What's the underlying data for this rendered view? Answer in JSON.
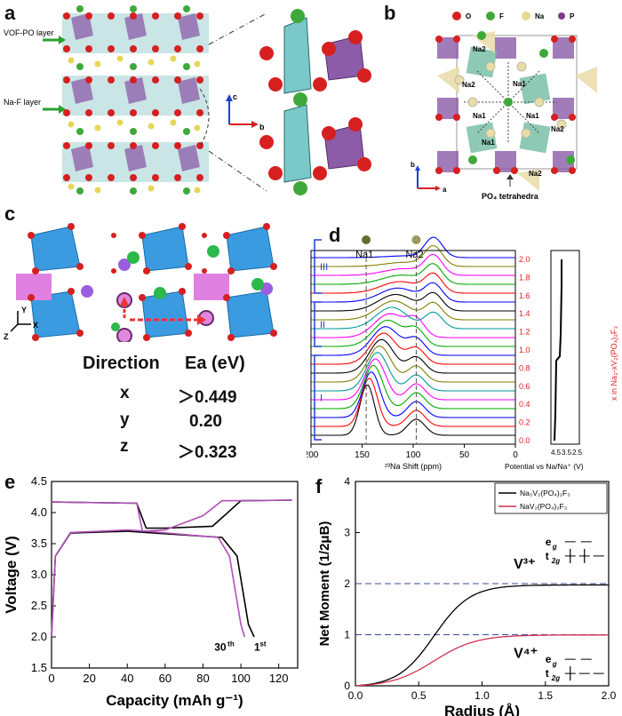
{
  "panel_labels": {
    "a": "a",
    "b": "b",
    "c": "c",
    "d": "d",
    "e": "e",
    "f": "f"
  },
  "panel_a": {
    "vofpo_layer": "VOF-PO layer",
    "naf_layer": "Na-F layer",
    "axis_c": "c",
    "axis_b": "b"
  },
  "panel_b": {
    "legend": [
      {
        "symbol": "O",
        "color": "#d62020"
      },
      {
        "symbol": "F",
        "color": "#3fa83a"
      },
      {
        "symbol": "Na",
        "color": "#e8d890"
      },
      {
        "symbol": "P",
        "color": "#7b3a8e"
      }
    ],
    "sites": [
      "Na2",
      "Na1",
      "Na2",
      "Na1",
      "Na1",
      "Na2",
      "Na1",
      "Na2"
    ],
    "caption": "PO₄ tetrahedra",
    "axis_a": "a",
    "axis_b": "b"
  },
  "panel_c": {
    "axes": {
      "y": "Y",
      "x": "X",
      "z": "Z"
    },
    "table": {
      "header": [
        "Direction",
        "Ea (eV)"
      ],
      "rows": [
        [
          "x",
          "＞0.449"
        ],
        [
          "y",
          "0.20"
        ],
        [
          "z",
          "＞0.323"
        ]
      ]
    }
  },
  "chart_data": [
    {
      "panel": "d",
      "type": "line",
      "xlabel": "²³Na Shift (ppm)",
      "xticks": [
        200,
        150,
        100,
        50,
        0
      ],
      "xlim": [
        200,
        0
      ],
      "peak_markers": [
        "Na1",
        "Na2"
      ],
      "regions": [
        "I",
        "II",
        "III"
      ],
      "right_axis_label": "x in Na₃-xV₂(PO₄)₂F₃",
      "right_axis_ticks": [
        "0.0",
        "0.2",
        "0.4",
        "0.6",
        "0.8",
        "1.0",
        "1.2",
        "1.4",
        "1.6",
        "1.8",
        "2.0"
      ],
      "potential_label": "Potential vs Na/Na⁺ (V)",
      "potential_ticks": [
        "4.5",
        "3.5",
        "2.5"
      ],
      "series_colors": [
        "#000000",
        "#ff0000",
        "#0000ff",
        "#00aa00",
        "#ff00ff",
        "#009999",
        "#808000",
        "#000000",
        "#ff0000",
        "#0000ff",
        "#00aa00",
        "#ff00ff",
        "#009999",
        "#808000",
        "#000000",
        "#0000ff",
        "#ff0000",
        "#00aa00",
        "#ff00ff",
        "#808000",
        "#0000ff"
      ]
    },
    {
      "panel": "e",
      "type": "line",
      "xlabel": "Capacity (mAh g⁻¹)",
      "ylabel": "Voltage (V)",
      "xlim": [
        0,
        130
      ],
      "ylim": [
        1.5,
        4.5
      ],
      "xticks": [
        "0",
        "20",
        "40",
        "60",
        "80",
        "100",
        "120"
      ],
      "yticks": [
        "1.5",
        "2.0",
        "2.5",
        "3.0",
        "3.5",
        "4.0",
        "4.5"
      ],
      "series": [
        {
          "name": "1st",
          "color": "#000000",
          "charge": [
            [
              0,
              4.17
            ],
            [
              45,
              4.15
            ],
            [
              50,
              3.75
            ],
            [
              60,
              3.75
            ],
            [
              85,
              3.78
            ],
            [
              100,
              4.19
            ],
            [
              127,
              4.2
            ]
          ],
          "discharge": [
            [
              0,
              2.0
            ],
            [
              2,
              3.3
            ],
            [
              10,
              3.67
            ],
            [
              40,
              3.7
            ],
            [
              50,
              3.68
            ],
            [
              90,
              3.6
            ],
            [
              98,
              3.3
            ],
            [
              104,
              2.2
            ],
            [
              107,
              2.0
            ]
          ]
        },
        {
          "name": "30th",
          "color": "#b050b8",
          "charge": [
            [
              0,
              4.17
            ],
            [
              45,
              4.15
            ],
            [
              48,
              3.7
            ],
            [
              60,
              3.72
            ],
            [
              80,
              3.95
            ],
            [
              90,
              4.19
            ],
            [
              127,
              4.2
            ]
          ],
          "discharge": [
            [
              0,
              2.0
            ],
            [
              2,
              3.3
            ],
            [
              10,
              3.68
            ],
            [
              40,
              3.72
            ],
            [
              50,
              3.7
            ],
            [
              88,
              3.6
            ],
            [
              94,
              3.3
            ],
            [
              100,
              2.2
            ],
            [
              102,
              2.0
            ]
          ]
        }
      ],
      "annotations": [
        "30",
        "th",
        "1",
        "st"
      ]
    },
    {
      "panel": "f",
      "type": "line",
      "xlabel": "Radius (Å)",
      "ylabel": "Net Moment (1/2μB)",
      "xlim": [
        0,
        2.0
      ],
      "ylim": [
        0,
        4
      ],
      "xticks": [
        "0.0",
        "0.5",
        "1.0",
        "1.5",
        "2.0"
      ],
      "yticks": [
        "0",
        "1",
        "2",
        "3",
        "4"
      ],
      "legend": [
        {
          "text": "Na₃V₂(PO₄)₂F₃",
          "color": "#000000"
        },
        {
          "text": "NaV₂(PO₄)₂F₃",
          "color": "#d03050"
        }
      ],
      "series": [
        {
          "name": "Na3V2(PO4)2F3",
          "color": "#000000",
          "points": [
            [
              0,
              0
            ],
            [
              0.2,
              0.05
            ],
            [
              0.4,
              0.4
            ],
            [
              0.6,
              1.0
            ],
            [
              0.8,
              1.55
            ],
            [
              1.0,
              1.85
            ],
            [
              1.2,
              1.97
            ],
            [
              1.5,
              2.0
            ],
            [
              2.0,
              2.0
            ]
          ]
        },
        {
          "name": "NaV2(PO4)2F3",
          "color": "#d03050",
          "points": [
            [
              0,
              0
            ],
            [
              0.2,
              0.03
            ],
            [
              0.4,
              0.2
            ],
            [
              0.6,
              0.5
            ],
            [
              0.8,
              0.8
            ],
            [
              1.0,
              0.95
            ],
            [
              1.2,
              1.0
            ],
            [
              1.5,
              1.02
            ],
            [
              2.0,
              1.02
            ]
          ]
        }
      ],
      "hlines": [
        2,
        1
      ],
      "labels": {
        "v3": "V³⁺",
        "v4": "V⁴⁺",
        "eg": "e",
        "eg_sub": "g",
        "t2g": "t",
        "t2g_sub": "2g"
      }
    }
  ]
}
